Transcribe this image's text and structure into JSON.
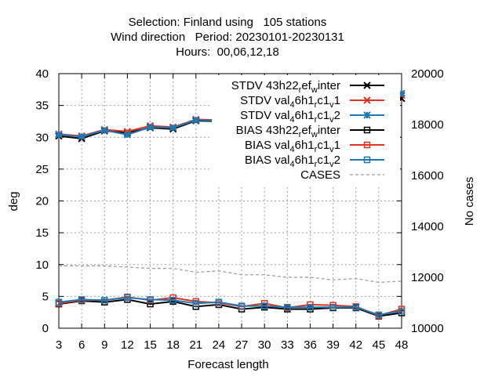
{
  "chart_data": {
    "type": "line",
    "title_lines": [
      "Selection: Finland using   105 stations",
      "Wind direction   Period: 20230101-20230131",
      "Hours:  00,06,12,18"
    ],
    "xlabel": "Forecast length",
    "ylabel": "deg",
    "y2label": "No cases",
    "x": [
      3,
      6,
      9,
      12,
      15,
      18,
      21,
      24,
      27,
      30,
      33,
      36,
      39,
      42,
      45,
      48
    ],
    "xlim": [
      3,
      48
    ],
    "ylim": [
      0,
      40
    ],
    "y2lim": [
      10000,
      20000
    ],
    "yticks": [
      0,
      5,
      10,
      15,
      20,
      25,
      30,
      35,
      40
    ],
    "y2ticks": [
      10000,
      12000,
      14000,
      16000,
      18000,
      20000
    ],
    "grid": true,
    "legend_position": "top-right",
    "series": [
      {
        "name": "STDV 43h22_ref_winter",
        "legend_parts": [
          [
            "STDV 43h22",
            "n"
          ],
          [
            "r",
            "sub"
          ],
          [
            "ef",
            "n"
          ],
          [
            "w",
            "sub"
          ],
          [
            "inter",
            "n"
          ]
        ],
        "color": "#000000",
        "marker": "x",
        "axis": "y",
        "dash": "",
        "values": [
          30.2,
          29.8,
          31.0,
          30.7,
          31.5,
          31.3,
          32.6,
          32.5,
          33.8,
          34.0,
          34.8,
          35.2,
          35.8,
          36.1,
          36.8,
          36.1
        ]
      },
      {
        "name": "STDV val_46h1_rc1_v1",
        "legend_parts": [
          [
            "STDV val",
            "n"
          ],
          [
            "4",
            "sub"
          ],
          [
            "6h1",
            "n"
          ],
          [
            "r",
            "sub"
          ],
          [
            "c1",
            "n"
          ],
          [
            "v",
            "sub"
          ],
          [
            "1",
            "n"
          ]
        ],
        "color": "#e0321e",
        "marker": "x",
        "axis": "y",
        "dash": "",
        "values": [
          30.5,
          30.2,
          31.2,
          30.9,
          31.8,
          31.6,
          32.8,
          32.7,
          34.0,
          34.2,
          35.3,
          35.5,
          36.1,
          36.2,
          37.0,
          36.6
        ]
      },
      {
        "name": "STDV val_46h1_rc1_v2",
        "legend_parts": [
          [
            "STDV val",
            "n"
          ],
          [
            "4",
            "sub"
          ],
          [
            "6h1",
            "n"
          ],
          [
            "r",
            "sub"
          ],
          [
            "c1",
            "n"
          ],
          [
            "v",
            "sub"
          ],
          [
            "2",
            "n"
          ]
        ],
        "color": "#1e78b4",
        "marker": "star",
        "axis": "y",
        "dash": "",
        "values": [
          30.4,
          30.1,
          31.1,
          30.4,
          31.6,
          31.5,
          32.7,
          32.6,
          34.0,
          34.1,
          35.4,
          35.4,
          36.2,
          36.3,
          36.9,
          36.9
        ]
      },
      {
        "name": "BIAS 43h22_ref_winter",
        "legend_parts": [
          [
            "BIAS 43h22",
            "n"
          ],
          [
            "r",
            "sub"
          ],
          [
            "ef",
            "n"
          ],
          [
            "w",
            "sub"
          ],
          [
            "inter",
            "n"
          ]
        ],
        "color": "#000000",
        "marker": "square",
        "axis": "y",
        "dash": "",
        "values": [
          3.8,
          4.3,
          4.1,
          4.5,
          3.8,
          4.2,
          3.4,
          3.7,
          3.0,
          3.3,
          3.0,
          3.0,
          3.2,
          3.2,
          1.9,
          2.4
        ]
      },
      {
        "name": "BIAS val_46h1_rc1_v1",
        "legend_parts": [
          [
            "BIAS val",
            "n"
          ],
          [
            "4",
            "sub"
          ],
          [
            "6h1",
            "n"
          ],
          [
            "r",
            "sub"
          ],
          [
            "c1",
            "n"
          ],
          [
            "v",
            "sub"
          ],
          [
            "1",
            "n"
          ]
        ],
        "color": "#e0321e",
        "marker": "square",
        "axis": "y",
        "dash": "",
        "values": [
          3.9,
          4.4,
          4.4,
          4.9,
          4.4,
          4.8,
          4.2,
          4.0,
          3.4,
          3.9,
          3.2,
          3.7,
          3.6,
          3.4,
          2.0,
          3.0
        ]
      },
      {
        "name": "BIAS val_46h1_rc1_v2",
        "legend_parts": [
          [
            "BIAS val",
            "n"
          ],
          [
            "4",
            "sub"
          ],
          [
            "6h1",
            "n"
          ],
          [
            "r",
            "sub"
          ],
          [
            "c1",
            "n"
          ],
          [
            "v",
            "sub"
          ],
          [
            "2",
            "n"
          ]
        ],
        "color": "#1e78b4",
        "marker": "square",
        "axis": "y",
        "dash": "",
        "values": [
          4.1,
          4.5,
          4.4,
          4.8,
          4.5,
          4.4,
          3.9,
          4.1,
          3.5,
          3.5,
          3.3,
          3.3,
          3.3,
          3.3,
          2.1,
          2.7
        ]
      },
      {
        "name": "CASES",
        "legend_parts": [
          [
            "CASES",
            "n"
          ]
        ],
        "color": "#999999",
        "marker": "none",
        "axis": "y2",
        "dash": "4,3",
        "values": [
          12450,
          12450,
          12450,
          12400,
          12350,
          12350,
          12200,
          12250,
          12100,
          12100,
          12000,
          12000,
          11900,
          11950,
          11800,
          11850
        ]
      }
    ]
  }
}
